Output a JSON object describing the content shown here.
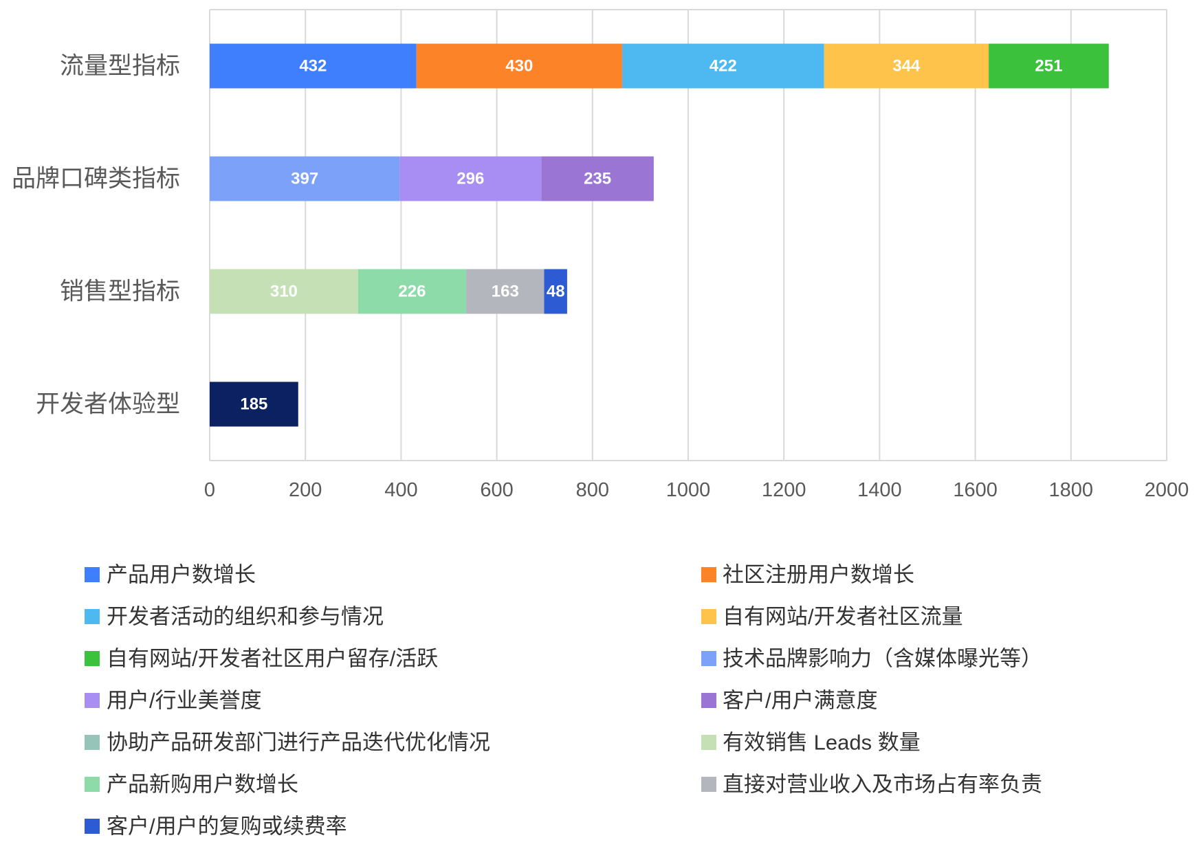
{
  "chart_data": {
    "type": "bar",
    "orientation": "horizontal",
    "stacked": true,
    "categories": [
      "流量型指标",
      "品牌口碑类指标",
      "销售型指标",
      "开发者体验型"
    ],
    "xlim": [
      0,
      2000
    ],
    "xticks": [
      0,
      200,
      400,
      600,
      800,
      1000,
      1200,
      1400,
      1600,
      1800,
      2000
    ],
    "grid": "vertical",
    "legend": "bottom",
    "data_labels": true,
    "series": [
      {
        "name": "产品用户数增长",
        "color": "#3F7FFD",
        "values": [
          432,
          null,
          null,
          null
        ]
      },
      {
        "name": "社区注册用户数增长",
        "color": "#FD8329",
        "values": [
          430,
          null,
          null,
          null
        ]
      },
      {
        "name": "开发者活动的组织和参与情况",
        "color": "#4EB8F1",
        "values": [
          422,
          null,
          null,
          null
        ]
      },
      {
        "name": "自有网站/开发者社区流量",
        "color": "#FEC34A",
        "values": [
          344,
          null,
          null,
          null
        ]
      },
      {
        "name": "自有网站/开发者社区用户留存/活跃",
        "color": "#3CC13D",
        "values": [
          251,
          null,
          null,
          null
        ]
      },
      {
        "name": "技术品牌影响力（含媒体曝光等）",
        "color": "#7CA1F8",
        "values": [
          null,
          397,
          null,
          null
        ]
      },
      {
        "name": "用户/行业美誉度",
        "color": "#A88DF2",
        "values": [
          null,
          296,
          null,
          null
        ]
      },
      {
        "name": "客户/用户满意度",
        "color": "#9B75D3",
        "values": [
          null,
          235,
          null,
          null
        ]
      },
      {
        "name": "协助产品研发部门进行产品迭代优化情况",
        "color": "#97C4B8",
        "values": [
          null,
          null,
          null,
          null
        ]
      },
      {
        "name": "有效销售 Leads 数量",
        "color": "#C5E0B5",
        "values": [
          null,
          null,
          310,
          null
        ]
      },
      {
        "name": "产品新购用户数增长",
        "color": "#8DDBA9",
        "values": [
          null,
          null,
          226,
          null
        ]
      },
      {
        "name": "直接对营业收入及市场占有率负责",
        "color": "#B3B6BC",
        "values": [
          null,
          null,
          163,
          null
        ]
      },
      {
        "name": "客户/用户的复购或续费率",
        "color": "#2D5BD3",
        "values": [
          null,
          null,
          48,
          null
        ]
      },
      {
        "color": "#0B2161",
        "values": [
          null,
          null,
          null,
          185
        ]
      }
    ]
  }
}
